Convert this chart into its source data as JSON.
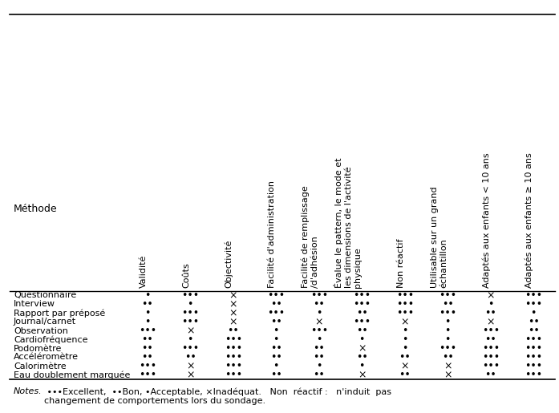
{
  "col_headers": [
    "Validité",
    "Coûts",
    "Objectivité",
    "Facilité d'administration",
    "Facilité de remplissage\n/d'adhésion",
    "Évalue le pattern, le mode et\nles dimensions de l'activité\nphysique",
    "Non réactif",
    "Utilisable sur un grand\néchantillon",
    "Adaptés aux enfants < 10 ans",
    "Adaptés aux enfants ≥ 10 ans"
  ],
  "row_labels": [
    "Questionnaire",
    "Interview",
    "Rapport par préposé",
    "Journal/carnet",
    "Observation",
    "Cardiofréquence",
    "Podomètre",
    "Accéléromètre",
    "Calorimètre",
    "Eau doublement marquée"
  ],
  "table_data": [
    [
      "•",
      "•••",
      "×",
      "•••",
      "•••",
      "•••",
      "•••",
      "•••",
      "×",
      "•••"
    ],
    [
      "••",
      "•",
      "×",
      "••",
      "••",
      "•••",
      "•••",
      "••",
      "•",
      "•••"
    ],
    [
      "•",
      "•••",
      "×",
      "•••",
      "•",
      "••",
      "•••",
      "•••",
      "••",
      "•"
    ],
    [
      "•",
      "•••",
      "×",
      "••",
      "×",
      "•••",
      "×",
      "•",
      "×",
      "••"
    ],
    [
      "•••",
      "×",
      "••",
      "•",
      "•••",
      "••",
      "•",
      "•",
      "•••",
      "••"
    ],
    [
      "••",
      "•",
      "•••",
      "•",
      "•",
      "•",
      "•",
      "•",
      "••",
      "•••"
    ],
    [
      "••",
      "•••",
      "•••",
      "••",
      "••",
      "×",
      "•",
      "•••",
      "•••",
      "•••"
    ],
    [
      "••",
      "••",
      "•••",
      "••",
      "••",
      "••",
      "••",
      "••",
      "•••",
      "•••"
    ],
    [
      "•••",
      "×",
      "•••",
      "•",
      "•",
      "•",
      "×",
      "×",
      "•••",
      "•••"
    ],
    [
      "•••",
      "×",
      "•••",
      "••",
      "••",
      "×",
      "••",
      "×",
      "••",
      "•••"
    ]
  ],
  "notes_italic": "Notes.",
  "notes_rest": " •••Excellent,  ••Bon, •Acceptable, ×Inadéquat.   Non  réactif :   n'induit  pas\nchangement de comportements lors du sondage.",
  "method_label": "Méthode",
  "background_color": "#ffffff",
  "text_color": "#000000",
  "fontsize": 8.0,
  "header_fontsize": 8.0,
  "figwidth": 6.97,
  "figheight": 5.15,
  "dpi": 100
}
